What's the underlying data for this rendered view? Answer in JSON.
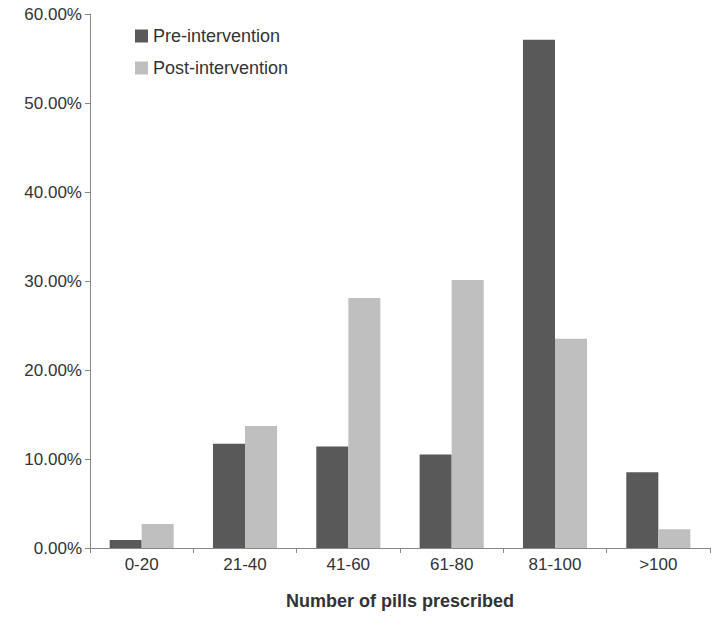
{
  "chart_data": {
    "type": "bar",
    "x_label": "Number of pills prescribed",
    "categories": [
      "0-20",
      "21-40",
      "41-60",
      "61-80",
      "81-100",
      ">100"
    ],
    "series": [
      {
        "name": "Pre-intervention",
        "color": "#595959",
        "values": [
          0.9,
          11.7,
          11.4,
          10.5,
          57.1,
          8.5
        ]
      },
      {
        "name": "Post-intervention",
        "color": "#bfbfbf",
        "values": [
          2.7,
          13.7,
          28.1,
          30.1,
          23.5,
          2.1
        ]
      }
    ],
    "ylim": [
      0,
      60
    ],
    "yticks": [
      {
        "value": 0,
        "label": "0.00%"
      },
      {
        "value": 10,
        "label": "10.00%"
      },
      {
        "value": 20,
        "label": "20.00%"
      },
      {
        "value": 30,
        "label": "30.00%"
      },
      {
        "value": 40,
        "label": "40.00%"
      },
      {
        "value": 50,
        "label": "50.00%"
      },
      {
        "value": 60,
        "label": "60.00%"
      }
    ],
    "grid": false,
    "legend": "top-left"
  }
}
